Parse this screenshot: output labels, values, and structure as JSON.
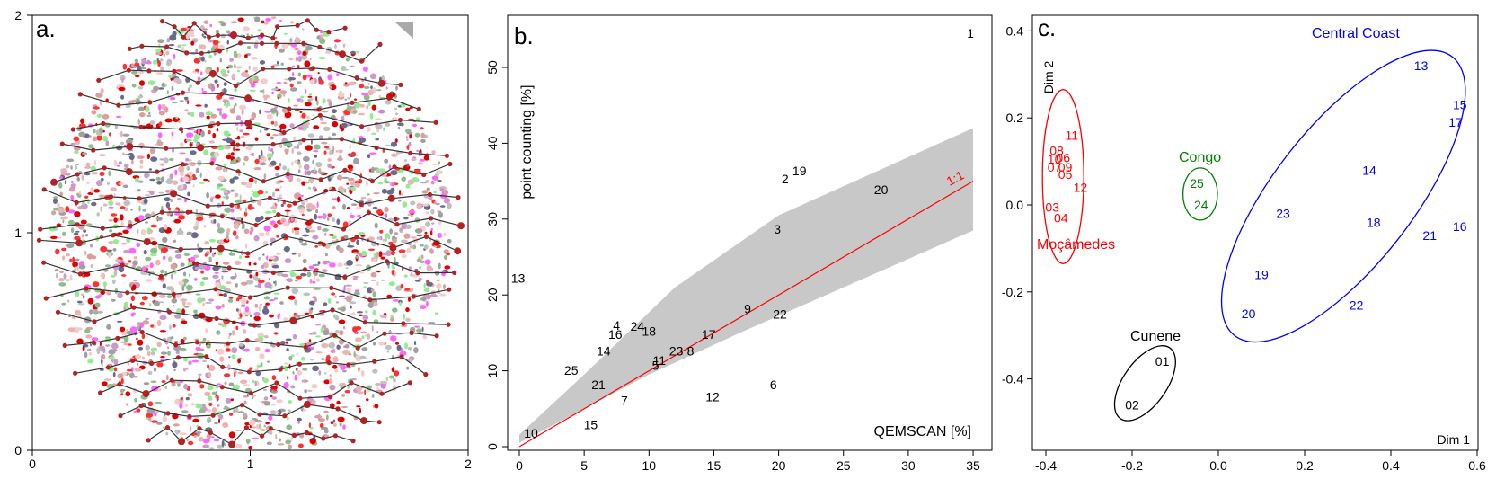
{
  "panels": [
    {
      "label": "a.",
      "x_ticks": [
        "0",
        "1",
        "2"
      ],
      "y_ticks": [
        "0",
        "1",
        "2"
      ]
    },
    {
      "label": "b.",
      "x_ticks": [
        "0",
        "5",
        "10",
        "15",
        "20",
        "25",
        "30",
        "35"
      ],
      "y_ticks": [
        "0",
        "10",
        "20",
        "30",
        "40",
        "50"
      ],
      "xlabel": "QEMSCAN [%]",
      "ylabel": "point counting [%]",
      "line_label": "1:1"
    },
    {
      "label": "c.",
      "x_ticks": [
        "-0.4",
        "-0.2",
        "0.0",
        "0.2",
        "0.4",
        "0.6"
      ],
      "y_ticks": [
        "-0.4",
        "-0.2",
        "0.0",
        "0.2",
        "0.4"
      ],
      "xlabel": "Dim 1",
      "ylabel": "Dim 2",
      "groups": [
        {
          "name": "Central Coast",
          "color": "#0000ff"
        },
        {
          "name": "Congo",
          "color": "#008000"
        },
        {
          "name": "Moçâmedes",
          "color": "#ff0000"
        },
        {
          "name": "Cunene",
          "color": "#000000"
        }
      ]
    }
  ],
  "chart_data": [
    {
      "type": "scatter",
      "xlim": [
        0,
        2
      ],
      "ylim": [
        0,
        2
      ],
      "series": [
        {
          "color": "#333333",
          "marker_color": "#b22222",
          "points": []
        }
      ]
    },
    {
      "type": "scatter",
      "xlim": [
        0,
        36
      ],
      "ylim": [
        0,
        56
      ],
      "grid": false,
      "reference_line": {
        "slope": 1,
        "color": "#ff0000"
      },
      "band_color": "#c8c8c8",
      "points": [
        {
          "label": "1",
          "x": 34.8,
          "y": 54.5
        },
        {
          "label": "2",
          "x": 20.5,
          "y": 35.3
        },
        {
          "label": "3",
          "x": 19.9,
          "y": 28.7
        },
        {
          "label": "4",
          "x": 7.5,
          "y": 16.0
        },
        {
          "label": "5",
          "x": 10.5,
          "y": 10.7
        },
        {
          "label": "6",
          "x": 19.6,
          "y": 8.2
        },
        {
          "label": "7",
          "x": 8.1,
          "y": 6.1
        },
        {
          "label": "8",
          "x": 13.2,
          "y": 12.6
        },
        {
          "label": "9",
          "x": 17.6,
          "y": 18.2
        },
        {
          "label": "10",
          "x": 0.9,
          "y": 1.8
        },
        {
          "label": "11",
          "x": 10.8,
          "y": 11.4
        },
        {
          "label": "12",
          "x": 14.9,
          "y": 6.6
        },
        {
          "label": "13",
          "x": -0.1,
          "y": 22.2
        },
        {
          "label": "14",
          "x": 6.5,
          "y": 12.6
        },
        {
          "label": "15",
          "x": 5.5,
          "y": 2.9
        },
        {
          "label": "16",
          "x": 7.4,
          "y": 14.8
        },
        {
          "label": "17",
          "x": 14.6,
          "y": 14.8
        },
        {
          "label": "18",
          "x": 10.0,
          "y": 15.2
        },
        {
          "label": "19",
          "x": 21.6,
          "y": 36.4
        },
        {
          "label": "20",
          "x": 27.9,
          "y": 33.9
        },
        {
          "label": "21",
          "x": 6.1,
          "y": 8.2
        },
        {
          "label": "22",
          "x": 20.1,
          "y": 17.5
        },
        {
          "label": "23",
          "x": 12.1,
          "y": 12.6
        },
        {
          "label": "24",
          "x": 9.1,
          "y": 15.9
        },
        {
          "label": "25",
          "x": 4.0,
          "y": 10.1
        }
      ]
    },
    {
      "type": "scatter",
      "xlim": [
        -0.42,
        0.6
      ],
      "ylim": [
        -0.56,
        0.44
      ],
      "points": [
        {
          "label": "13",
          "x": 0.47,
          "y": 0.32,
          "group": 0
        },
        {
          "label": "15",
          "x": 0.56,
          "y": 0.23,
          "group": 0
        },
        {
          "label": "17",
          "x": 0.55,
          "y": 0.19,
          "group": 0
        },
        {
          "label": "14",
          "x": 0.35,
          "y": 0.08,
          "group": 0
        },
        {
          "label": "23",
          "x": 0.15,
          "y": -0.02,
          "group": 0
        },
        {
          "label": "18",
          "x": 0.36,
          "y": -0.04,
          "group": 0
        },
        {
          "label": "16",
          "x": 0.56,
          "y": -0.05,
          "group": 0
        },
        {
          "label": "21",
          "x": 0.49,
          "y": -0.07,
          "group": 0
        },
        {
          "label": "19",
          "x": 0.1,
          "y": -0.16,
          "group": 0
        },
        {
          "label": "22",
          "x": 0.32,
          "y": -0.23,
          "group": 0
        },
        {
          "label": "20",
          "x": 0.07,
          "y": -0.25,
          "group": 0
        },
        {
          "label": "25",
          "x": -0.05,
          "y": 0.05,
          "group": 1
        },
        {
          "label": "24",
          "x": -0.04,
          "y": 0.0,
          "group": 1
        },
        {
          "label": "11",
          "x": -0.34,
          "y": 0.16,
          "group": 2
        },
        {
          "label": "08",
          "x": -0.375,
          "y": 0.125,
          "group": 2
        },
        {
          "label": "10",
          "x": -0.38,
          "y": 0.105,
          "group": 2
        },
        {
          "label": "06",
          "x": -0.36,
          "y": 0.108,
          "group": 2
        },
        {
          "label": "07",
          "x": -0.38,
          "y": 0.087,
          "group": 2
        },
        {
          "label": "09",
          "x": -0.355,
          "y": 0.087,
          "group": 2
        },
        {
          "label": "05",
          "x": -0.355,
          "y": 0.07,
          "group": 2
        },
        {
          "label": "12",
          "x": -0.32,
          "y": 0.04,
          "group": 2
        },
        {
          "label": "03",
          "x": -0.385,
          "y": -0.005,
          "group": 2
        },
        {
          "label": "04",
          "x": -0.365,
          "y": -0.03,
          "group": 2
        },
        {
          "label": "01",
          "x": -0.13,
          "y": -0.36,
          "group": 3
        },
        {
          "label": "02",
          "x": -0.2,
          "y": -0.46,
          "group": 3
        }
      ],
      "ellipses": [
        {
          "group": 0,
          "cx": 0.29,
          "cy": 0.02,
          "rx": 0.41,
          "ry": 0.16,
          "angle": -52
        },
        {
          "group": 1,
          "cx": -0.042,
          "cy": 0.025,
          "rx": 0.04,
          "ry": 0.06,
          "angle": 0
        },
        {
          "group": 2,
          "cx": -0.36,
          "cy": 0.065,
          "rx": 0.048,
          "ry": 0.2,
          "angle": 0
        },
        {
          "group": 3,
          "cx": -0.17,
          "cy": -0.41,
          "rx": 0.1,
          "ry": 0.05,
          "angle": -55
        }
      ]
    }
  ]
}
